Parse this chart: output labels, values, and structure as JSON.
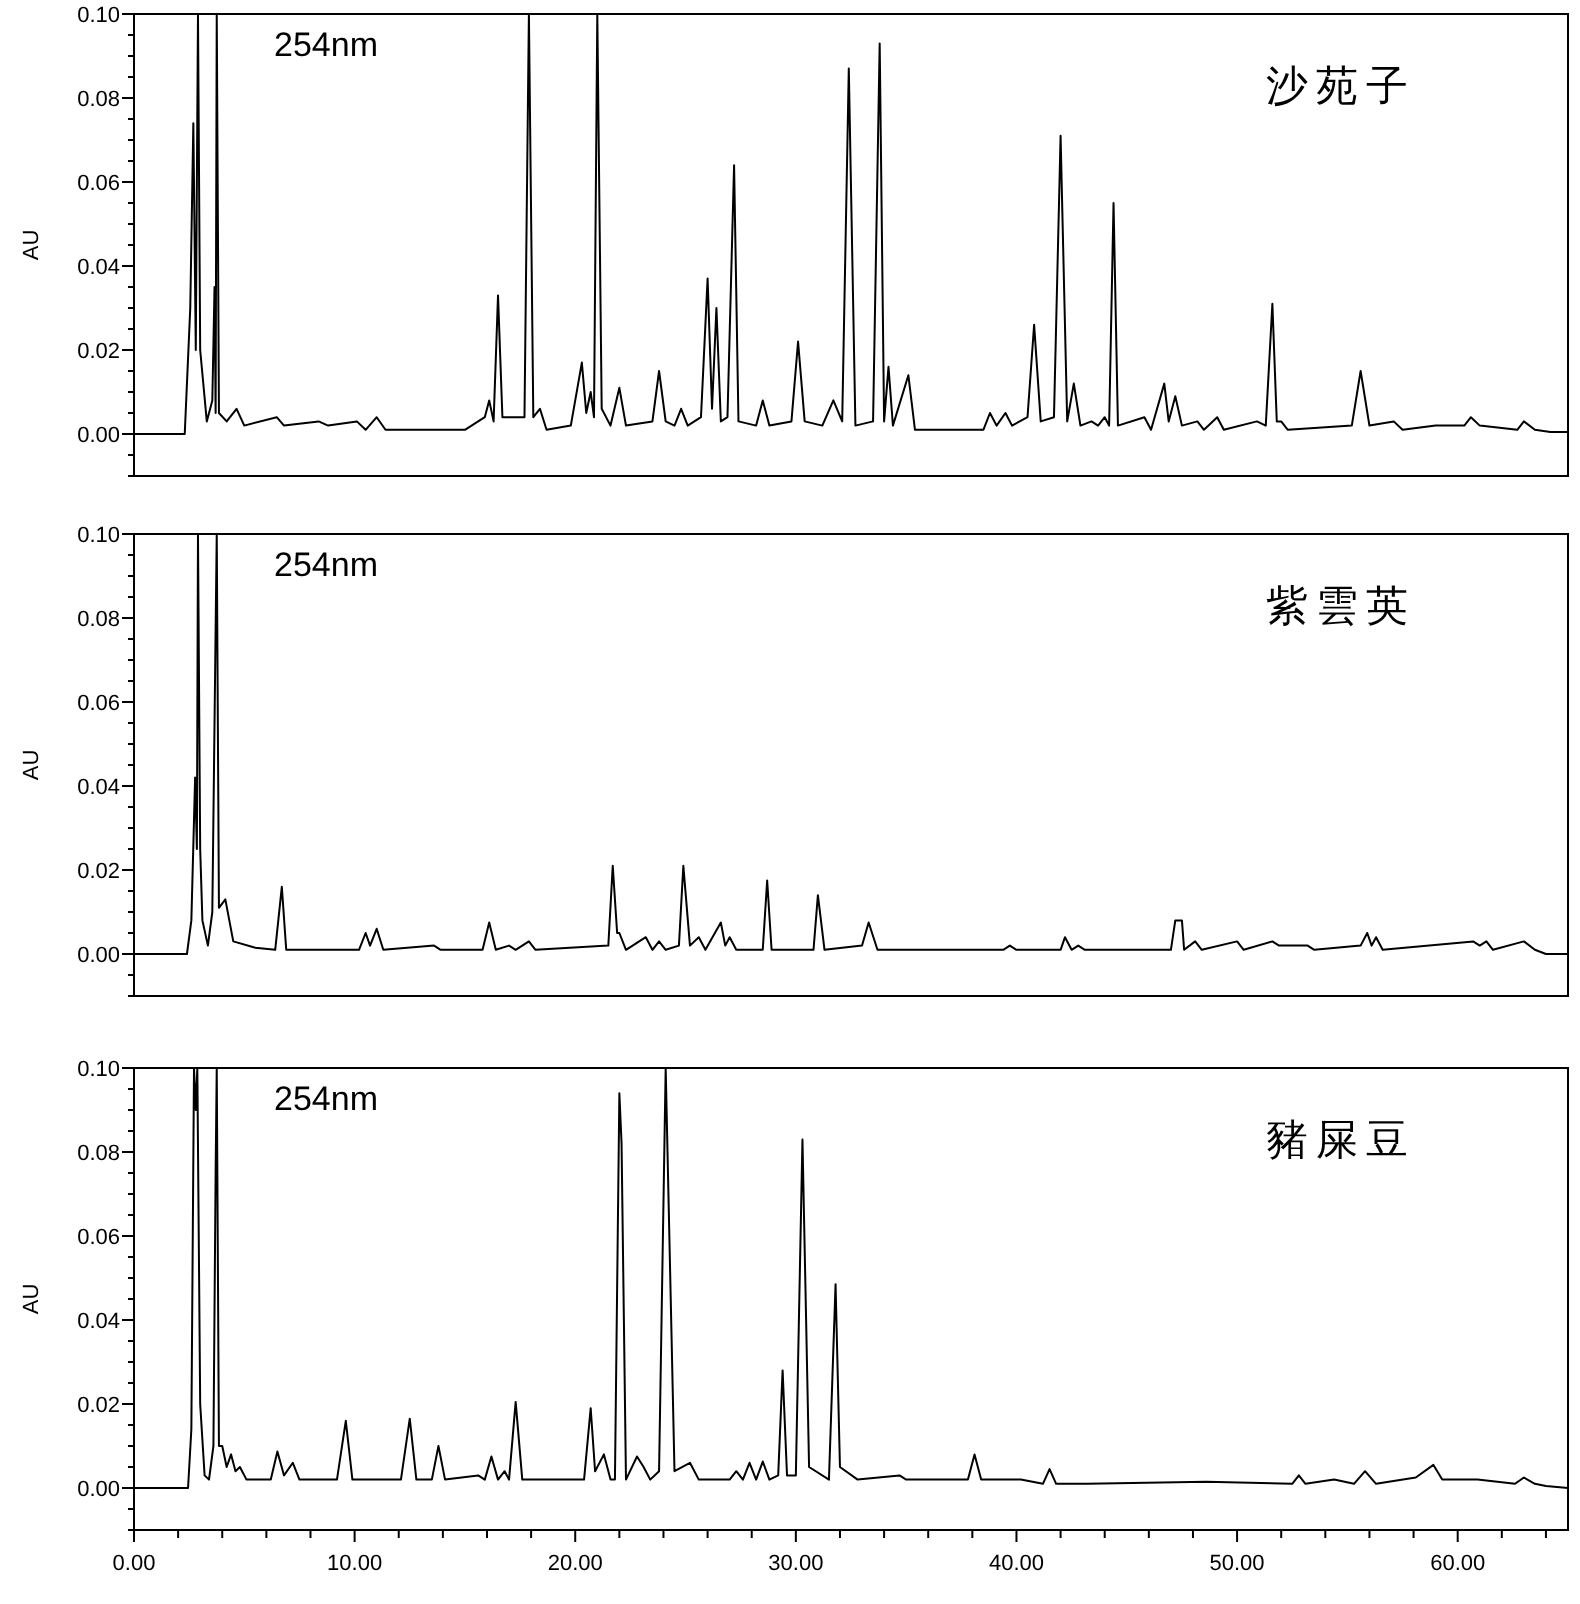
{
  "chart_data": [
    {
      "type": "line",
      "title": "沙苑子",
      "annotations": [
        "254nm"
      ],
      "ylabel": "AU",
      "tick_labels": "y",
      "xlim": [
        0,
        65
      ],
      "ylim": [
        -0.01,
        0.1
      ],
      "yticks": [
        {
          "value": -0.01,
          "label": null
        },
        {
          "value": -0.005,
          "label": null
        },
        {
          "value": 0,
          "label": "0.00"
        },
        {
          "value": 0.005,
          "label": null
        },
        {
          "value": 0.01,
          "label": null
        },
        {
          "value": 0.015,
          "label": null
        },
        {
          "value": 0.02,
          "label": "0.02"
        },
        {
          "value": 0.025,
          "label": null
        },
        {
          "value": 0.03,
          "label": null
        },
        {
          "value": 0.035,
          "label": null
        },
        {
          "value": 0.04,
          "label": "0.04"
        },
        {
          "value": 0.045,
          "label": null
        },
        {
          "value": 0.05,
          "label": null
        },
        {
          "value": 0.055,
          "label": null
        },
        {
          "value": 0.06,
          "label": "0.06"
        },
        {
          "value": 0.065,
          "label": null
        },
        {
          "value": 0.07,
          "label": null
        },
        {
          "value": 0.075,
          "label": null
        },
        {
          "value": 0.08,
          "label": "0.08"
        },
        {
          "value": 0.085,
          "label": null
        },
        {
          "value": 0.09,
          "label": null
        },
        {
          "value": 0.095,
          "label": null
        },
        {
          "value": 0.1,
          "label": "0.10"
        }
      ],
      "series": [
        {
          "color": "#000000",
          "x": [
            0,
            2.3,
            2.55,
            2.69,
            2.8,
            2.9,
            3.0,
            3.3,
            3.55,
            3.65,
            3.7,
            3.75,
            3.85,
            4.2,
            4.65,
            5.0,
            6.47,
            6.8,
            8.37,
            8.8,
            10.1,
            10.5,
            11.0,
            11.4,
            15.0,
            15.9,
            16.1,
            16.3,
            16.5,
            16.7,
            17.3,
            17.7,
            17.9,
            18.1,
            18.4,
            18.7,
            19.8,
            20.3,
            20.5,
            20.7,
            20.85,
            21.0,
            21.2,
            21.6,
            22.0,
            22.3,
            23.5,
            23.8,
            24.1,
            24.5,
            24.8,
            25.1,
            25.7,
            26.0,
            26.2,
            26.4,
            26.6,
            26.9,
            27.2,
            27.4,
            28.2,
            28.5,
            28.8,
            29.8,
            30.1,
            30.4,
            31.2,
            31.7,
            32.1,
            32.4,
            32.7,
            33.5,
            33.8,
            34.0,
            34.2,
            34.4,
            35.1,
            35.4,
            38.5,
            38.8,
            39.1,
            39.5,
            39.8,
            40.5,
            40.8,
            41.1,
            41.7,
            42.0,
            42.3,
            42.6,
            42.9,
            43.4,
            43.7,
            44.0,
            44.2,
            44.4,
            44.6,
            45.8,
            46.1,
            46.7,
            46.9,
            47.2,
            47.5,
            48.2,
            48.5,
            49.1,
            49.4,
            50.9,
            51.3,
            51.6,
            51.8,
            52.0,
            52.3,
            55.2,
            55.6,
            56.0,
            57.1,
            57.5,
            59.0,
            60.3,
            60.6,
            61.0,
            62.7,
            63.0,
            63.5,
            64.2,
            65
          ],
          "values": [
            0,
            0,
            0.03,
            0.074,
            0.02,
            0.1,
            0.02,
            0.003,
            0.008,
            0.035,
            0.005,
            0.1,
            0.005,
            0.003,
            0.006,
            0.002,
            0.004,
            0.002,
            0.003,
            0.002,
            0.003,
            0.001,
            0.004,
            0.001,
            0.001,
            0.004,
            0.008,
            0.003,
            0.033,
            0.004,
            0.004,
            0.004,
            0.1,
            0.004,
            0.006,
            0.001,
            0.002,
            0.017,
            0.005,
            0.01,
            0.004,
            0.1,
            0.006,
            0.002,
            0.011,
            0.002,
            0.003,
            0.015,
            0.003,
            0.002,
            0.006,
            0.002,
            0.004,
            0.037,
            0.006,
            0.03,
            0.003,
            0.004,
            0.064,
            0.003,
            0.002,
            0.008,
            0.002,
            0.003,
            0.022,
            0.003,
            0.002,
            0.008,
            0.003,
            0.087,
            0.002,
            0.003,
            0.093,
            0.003,
            0.016,
            0.002,
            0.014,
            0.001,
            0.001,
            0.005,
            0.002,
            0.005,
            0.002,
            0.004,
            0.026,
            0.003,
            0.004,
            0.071,
            0.003,
            0.012,
            0.002,
            0.003,
            0.002,
            0.004,
            0.002,
            0.055,
            0.002,
            0.004,
            0.001,
            0.012,
            0.003,
            0.009,
            0.002,
            0.003,
            0.001,
            0.004,
            0.001,
            0.003,
            0.002,
            0.031,
            0.003,
            0.003,
            0.001,
            0.002,
            0.015,
            0.002,
            0.003,
            0.001,
            0.002,
            0.002,
            0.004,
            0.002,
            0.001,
            0.003,
            0.001,
            0.0005,
            0.0005
          ]
        }
      ]
    },
    {
      "type": "line",
      "title": "紫雲英",
      "annotations": [
        "254nm"
      ],
      "ylabel": "AU",
      "tick_labels": "y",
      "xlim": [
        0,
        65
      ],
      "ylim": [
        -0.01,
        0.1
      ],
      "yticks": [
        {
          "value": -0.01,
          "label": null
        },
        {
          "value": -0.005,
          "label": null
        },
        {
          "value": 0,
          "label": "0.00"
        },
        {
          "value": 0.005,
          "label": null
        },
        {
          "value": 0.01,
          "label": null
        },
        {
          "value": 0.015,
          "label": null
        },
        {
          "value": 0.02,
          "label": "0.02"
        },
        {
          "value": 0.025,
          "label": null
        },
        {
          "value": 0.03,
          "label": null
        },
        {
          "value": 0.035,
          "label": null
        },
        {
          "value": 0.04,
          "label": "0.04"
        },
        {
          "value": 0.045,
          "label": null
        },
        {
          "value": 0.05,
          "label": null
        },
        {
          "value": 0.055,
          "label": null
        },
        {
          "value": 0.06,
          "label": "0.06"
        },
        {
          "value": 0.065,
          "label": null
        },
        {
          "value": 0.07,
          "label": null
        },
        {
          "value": 0.075,
          "label": null
        },
        {
          "value": 0.08,
          "label": "0.08"
        },
        {
          "value": 0.085,
          "label": null
        },
        {
          "value": 0.09,
          "label": null
        },
        {
          "value": 0.095,
          "label": null
        },
        {
          "value": 0.1,
          "label": "0.10"
        }
      ],
      "series": [
        {
          "color": "#000000",
          "x": [
            0,
            2.4,
            2.6,
            2.77,
            2.85,
            2.9,
            3.0,
            3.1,
            3.35,
            3.55,
            3.75,
            3.85,
            4.14,
            4.5,
            5.5,
            6.4,
            6.7,
            6.9,
            10.2,
            10.5,
            10.7,
            11.0,
            11.3,
            13.6,
            13.9,
            15.8,
            16.1,
            16.4,
            17.0,
            17.3,
            17.9,
            18.2,
            21.5,
            21.7,
            21.9,
            22.0,
            22.3,
            23.2,
            23.5,
            23.8,
            24.1,
            24.7,
            24.9,
            25.2,
            25.6,
            25.9,
            26.6,
            26.8,
            27.0,
            27.3,
            28.5,
            28.7,
            28.9,
            30.8,
            31.0,
            31.3,
            33.0,
            33.3,
            33.7,
            39.4,
            39.7,
            40.0,
            42.0,
            42.2,
            42.5,
            42.8,
            43.1,
            47.0,
            47.2,
            47.5,
            47.6,
            48.1,
            48.4,
            50.0,
            50.3,
            51.6,
            51.9,
            53.2,
            53.5,
            55.6,
            55.9,
            56.1,
            56.3,
            56.6,
            60.7,
            61.0,
            61.3,
            61.6,
            63.0,
            63.5,
            64.0,
            65
          ],
          "values": [
            0,
            0,
            0.008,
            0.042,
            0.025,
            0.1,
            0.025,
            0.008,
            0.002,
            0.01,
            0.1,
            0.011,
            0.013,
            0.003,
            0.0015,
            0.001,
            0.016,
            0.001,
            0.001,
            0.005,
            0.002,
            0.006,
            0.001,
            0.002,
            0.001,
            0.001,
            0.0075,
            0.001,
            0.002,
            0.001,
            0.003,
            0.001,
            0.002,
            0.021,
            0.005,
            0.005,
            0.001,
            0.004,
            0.001,
            0.003,
            0.001,
            0.002,
            0.021,
            0.002,
            0.004,
            0.001,
            0.0075,
            0.002,
            0.004,
            0.001,
            0.001,
            0.0175,
            0.001,
            0.001,
            0.014,
            0.001,
            0.002,
            0.0075,
            0.001,
            0.001,
            0.002,
            0.001,
            0.001,
            0.004,
            0.001,
            0.002,
            0.001,
            0.001,
            0.008,
            0.008,
            0.001,
            0.003,
            0.001,
            0.003,
            0.001,
            0.003,
            0.002,
            0.002,
            0.001,
            0.002,
            0.005,
            0.002,
            0.004,
            0.001,
            0.003,
            0.002,
            0.003,
            0.001,
            0.003,
            0.001,
            0,
            0
          ]
        }
      ]
    },
    {
      "type": "line",
      "title": "豬屎豆",
      "annotations": [
        "254nm"
      ],
      "ylabel": "AU",
      "xlim": [
        0,
        65
      ],
      "ylim": [
        -0.01,
        0.1
      ],
      "xticks": [
        {
          "value": 0,
          "label": "0.00"
        },
        {
          "value": 2,
          "label": null
        },
        {
          "value": 4,
          "label": null
        },
        {
          "value": 6,
          "label": null
        },
        {
          "value": 8,
          "label": null
        },
        {
          "value": 10,
          "label": "10.00"
        },
        {
          "value": 12,
          "label": null
        },
        {
          "value": 14,
          "label": null
        },
        {
          "value": 16,
          "label": null
        },
        {
          "value": 18,
          "label": null
        },
        {
          "value": 20,
          "label": "20.00"
        },
        {
          "value": 22,
          "label": null
        },
        {
          "value": 24,
          "label": null
        },
        {
          "value": 26,
          "label": null
        },
        {
          "value": 28,
          "label": null
        },
        {
          "value": 30,
          "label": "30.00"
        },
        {
          "value": 32,
          "label": null
        },
        {
          "value": 34,
          "label": null
        },
        {
          "value": 36,
          "label": null
        },
        {
          "value": 38,
          "label": null
        },
        {
          "value": 40,
          "label": "40.00"
        },
        {
          "value": 42,
          "label": null
        },
        {
          "value": 44,
          "label": null
        },
        {
          "value": 46,
          "label": null
        },
        {
          "value": 48,
          "label": null
        },
        {
          "value": 50,
          "label": "50.00"
        },
        {
          "value": 52,
          "label": null
        },
        {
          "value": 54,
          "label": null
        },
        {
          "value": 56,
          "label": null
        },
        {
          "value": 58,
          "label": null
        },
        {
          "value": 60,
          "label": "60.00"
        },
        {
          "value": 62,
          "label": null
        },
        {
          "value": 64,
          "label": null
        }
      ],
      "yticks": [
        {
          "value": -0.01,
          "label": null
        },
        {
          "value": -0.005,
          "label": null
        },
        {
          "value": 0,
          "label": "0.00"
        },
        {
          "value": 0.005,
          "label": null
        },
        {
          "value": 0.01,
          "label": null
        },
        {
          "value": 0.015,
          "label": null
        },
        {
          "value": 0.02,
          "label": "0.02"
        },
        {
          "value": 0.025,
          "label": null
        },
        {
          "value": 0.03,
          "label": null
        },
        {
          "value": 0.035,
          "label": null
        },
        {
          "value": 0.04,
          "label": "0.04"
        },
        {
          "value": 0.045,
          "label": null
        },
        {
          "value": 0.05,
          "label": null
        },
        {
          "value": 0.055,
          "label": null
        },
        {
          "value": 0.06,
          "label": "0.06"
        },
        {
          "value": 0.065,
          "label": null
        },
        {
          "value": 0.07,
          "label": null
        },
        {
          "value": 0.075,
          "label": null
        },
        {
          "value": 0.08,
          "label": "0.08"
        },
        {
          "value": 0.085,
          "label": null
        },
        {
          "value": 0.09,
          "label": null
        },
        {
          "value": 0.095,
          "label": null
        },
        {
          "value": 0.1,
          "label": "0.10"
        }
      ],
      "series": [
        {
          "color": "#000000",
          "x": [
            0,
            2.45,
            2.6,
            2.72,
            2.8,
            2.87,
            3.0,
            3.2,
            3.4,
            3.6,
            3.7,
            3.75,
            3.85,
            4.0,
            4.2,
            4.4,
            4.6,
            4.8,
            5.1,
            6.2,
            6.5,
            6.8,
            7.2,
            7.5,
            9.2,
            9.6,
            9.9,
            12.1,
            12.5,
            12.8,
            13.5,
            13.8,
            14.1,
            15.6,
            15.9,
            16.2,
            16.5,
            16.8,
            17.0,
            17.3,
            17.6,
            20.1,
            20.4,
            20.7,
            20.9,
            21.3,
            21.6,
            21.8,
            22.0,
            22.1,
            22.3,
            22.8,
            23.1,
            23.4,
            23.8,
            24.1,
            24.5,
            25.2,
            25.6,
            27.0,
            27.3,
            27.6,
            27.9,
            28.2,
            28.5,
            28.8,
            29.2,
            29.4,
            29.6,
            30.0,
            30.3,
            30.6,
            31.5,
            31.8,
            32.0,
            32.8,
            34.7,
            35.0,
            36.4,
            37.8,
            38.1,
            38.4,
            40.2,
            41.2,
            41.5,
            41.8,
            43.2,
            48.6,
            52.5,
            52.8,
            53.1,
            54.4,
            55.3,
            55.8,
            56.3,
            58.1,
            58.9,
            59.3,
            60.9,
            62.6,
            63.0,
            63.5,
            64.0,
            65
          ],
          "values": [
            0,
            0,
            0.014,
            0.1,
            0.09,
            0.1,
            0.02,
            0.003,
            0.002,
            0.01,
            0.075,
            0.1,
            0.01,
            0.01,
            0.005,
            0.008,
            0.004,
            0.005,
            0.002,
            0.002,
            0.0087,
            0.003,
            0.006,
            0.002,
            0.002,
            0.016,
            0.002,
            0.002,
            0.0165,
            0.002,
            0.002,
            0.01,
            0.002,
            0.003,
            0.002,
            0.0075,
            0.002,
            0.004,
            0.002,
            0.0205,
            0.002,
            0.002,
            0.002,
            0.019,
            0.004,
            0.008,
            0.002,
            0.002,
            0.094,
            0.082,
            0.002,
            0.0075,
            0.005,
            0.002,
            0.004,
            0.1,
            0.004,
            0.006,
            0.002,
            0.002,
            0.004,
            0.002,
            0.006,
            0.002,
            0.0063,
            0.002,
            0.003,
            0.028,
            0.003,
            0.003,
            0.083,
            0.005,
            0.002,
            0.0485,
            0.005,
            0.002,
            0.003,
            0.002,
            0.002,
            0.002,
            0.008,
            0.002,
            0.002,
            0.001,
            0.0045,
            0.001,
            0.001,
            0.0015,
            0.001,
            0.003,
            0.001,
            0.002,
            0.001,
            0.004,
            0.001,
            0.0025,
            0.0055,
            0.002,
            0.002,
            0.001,
            0.0025,
            0.001,
            0.0005,
            0
          ]
        }
      ]
    }
  ]
}
